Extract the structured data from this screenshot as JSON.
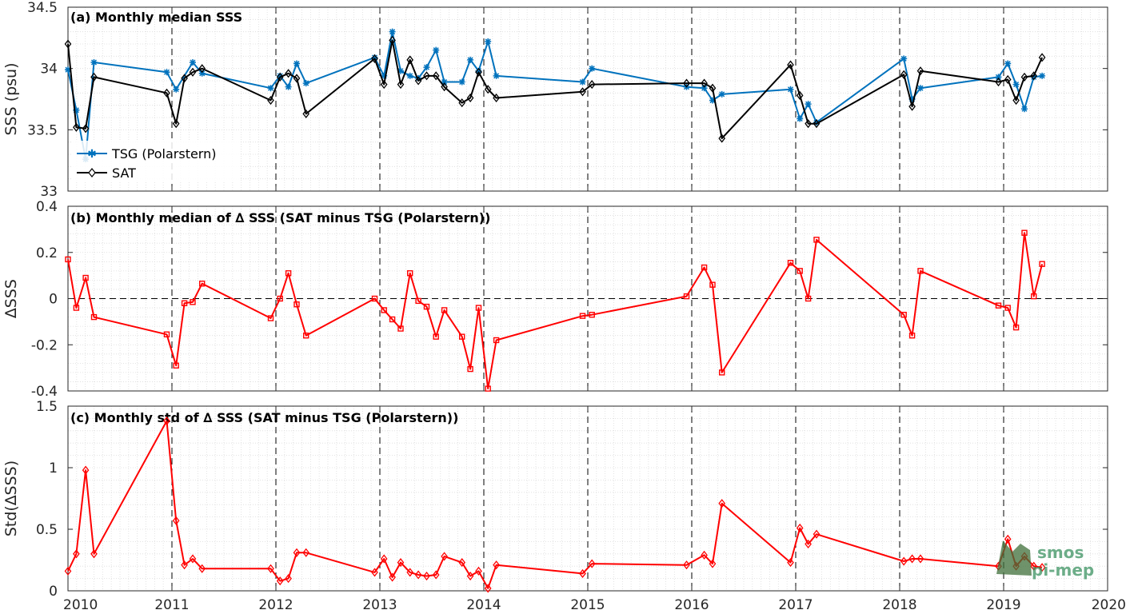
{
  "chart_data": [
    {
      "panel": "a",
      "type": "line",
      "title": "(a) Monthly median SSS",
      "ylabel": "SSS (psu)",
      "xlim": [
        2010,
        2020
      ],
      "ylim": [
        33,
        34.5
      ],
      "yticks": [
        33,
        33.5,
        34,
        34.5
      ],
      "yticklabels": [
        "33",
        "33.5",
        "34",
        "34.5"
      ],
      "grid": true,
      "legend_position": "bottom-left",
      "series": [
        {
          "name": "TSG (Polarstern)",
          "color": "#0072BD",
          "marker": "star",
          "x": [
            2010.0,
            2010.08,
            2010.17,
            2010.25,
            2010.95,
            2011.04,
            2011.2,
            2011.29,
            2011.95,
            2012.04,
            2012.12,
            2012.2,
            2012.29,
            2012.95,
            2013.04,
            2013.12,
            2013.2,
            2013.29,
            2013.37,
            2013.45,
            2013.54,
            2013.62,
            2013.79,
            2013.87,
            2013.95,
            2014.04,
            2014.12,
            2014.95,
            2015.04,
            2015.95,
            2016.12,
            2016.2,
            2016.29,
            2016.95,
            2017.04,
            2017.12,
            2017.2,
            2018.04,
            2018.12,
            2018.2,
            2018.95,
            2019.04,
            2019.12,
            2019.2,
            2019.29,
            2019.37
          ],
          "y": [
            33.99,
            33.66,
            33.26,
            34.05,
            33.97,
            33.83,
            34.05,
            33.96,
            33.84,
            33.94,
            33.85,
            34.04,
            33.88,
            34.09,
            33.94,
            34.3,
            33.98,
            33.94,
            33.92,
            34.01,
            34.15,
            33.89,
            33.89,
            34.07,
            33.98,
            34.22,
            33.94,
            33.89,
            34.0,
            33.85,
            33.84,
            33.74,
            33.79,
            33.83,
            33.59,
            33.71,
            33.56,
            34.08,
            33.75,
            33.84,
            33.93,
            34.04,
            33.87,
            33.67,
            33.93,
            33.94
          ]
        },
        {
          "name": "SAT",
          "color": "#000000",
          "marker": "diamond",
          "x": [
            2010.0,
            2010.08,
            2010.17,
            2010.25,
            2010.95,
            2011.04,
            2011.12,
            2011.2,
            2011.29,
            2011.95,
            2012.04,
            2012.12,
            2012.2,
            2012.29,
            2012.95,
            2013.04,
            2013.12,
            2013.2,
            2013.29,
            2013.37,
            2013.45,
            2013.54,
            2013.62,
            2013.79,
            2013.87,
            2013.95,
            2014.04,
            2014.12,
            2014.95,
            2015.04,
            2015.95,
            2016.12,
            2016.2,
            2016.29,
            2016.95,
            2017.04,
            2017.12,
            2017.2,
            2018.04,
            2018.12,
            2018.2,
            2018.95,
            2019.04,
            2019.12,
            2019.2,
            2019.29,
            2019.37
          ],
          "y": [
            34.2,
            33.52,
            33.51,
            33.93,
            33.8,
            33.55,
            33.92,
            33.97,
            34.0,
            33.74,
            33.93,
            33.96,
            33.92,
            33.63,
            34.08,
            33.87,
            34.23,
            33.87,
            34.07,
            33.9,
            33.94,
            33.94,
            33.85,
            33.72,
            33.76,
            33.97,
            33.83,
            33.76,
            33.81,
            33.87,
            33.88,
            33.88,
            33.84,
            33.43,
            34.03,
            33.78,
            33.55,
            33.55,
            33.95,
            33.69,
            33.98,
            33.89,
            33.91,
            33.74,
            33.93,
            33.94,
            34.09
          ]
        }
      ]
    },
    {
      "panel": "b",
      "type": "line",
      "title": "(b) Monthly median of ∆ SSS (SAT minus TSG (Polarstern))",
      "ylabel": "∆SSS",
      "xlim": [
        2010,
        2020
      ],
      "ylim": [
        -0.4,
        0.4
      ],
      "yticks": [
        -0.4,
        -0.2,
        0,
        0.2,
        0.4
      ],
      "yticklabels": [
        "-0.4",
        "-0.2",
        "0",
        "0.2",
        "0.4"
      ],
      "grid": true,
      "reference_line": 0,
      "series": [
        {
          "name": "",
          "color": "#FF0000",
          "marker": "square",
          "x": [
            2010.0,
            2010.08,
            2010.17,
            2010.25,
            2010.95,
            2011.04,
            2011.12,
            2011.2,
            2011.29,
            2011.95,
            2012.04,
            2012.12,
            2012.2,
            2012.29,
            2012.95,
            2013.04,
            2013.12,
            2013.2,
            2013.29,
            2013.37,
            2013.45,
            2013.54,
            2013.62,
            2013.79,
            2013.87,
            2013.95,
            2014.04,
            2014.12,
            2014.95,
            2015.04,
            2015.95,
            2016.12,
            2016.2,
            2016.29,
            2016.95,
            2017.04,
            2017.12,
            2017.2,
            2018.04,
            2018.12,
            2018.2,
            2018.95,
            2019.04,
            2019.12,
            2019.2,
            2019.29,
            2019.37
          ],
          "y": [
            0.17,
            -0.04,
            0.09,
            -0.08,
            -0.155,
            -0.29,
            -0.02,
            -0.015,
            0.065,
            -0.085,
            0.0,
            0.11,
            -0.025,
            -0.16,
            0.0,
            -0.05,
            -0.09,
            -0.13,
            0.11,
            -0.01,
            -0.035,
            -0.165,
            -0.05,
            -0.165,
            -0.305,
            -0.04,
            -0.39,
            -0.18,
            -0.075,
            -0.07,
            0.01,
            0.135,
            0.06,
            -0.32,
            0.155,
            0.12,
            0.0,
            0.255,
            -0.07,
            -0.16,
            0.12,
            -0.03,
            -0.04,
            -0.125,
            0.285,
            0.01,
            0.15
          ]
        }
      ]
    },
    {
      "panel": "c",
      "type": "line",
      "title": "(c) Monthly std of ∆ SSS (SAT minus TSG (Polarstern))",
      "ylabel": "Std(∆SSS)",
      "xlim": [
        2010,
        2020
      ],
      "ylim": [
        0,
        1.5
      ],
      "yticks": [
        0,
        0.5,
        1,
        1.5
      ],
      "yticklabels": [
        "0",
        "0.5",
        "1",
        "1.5"
      ],
      "grid": true,
      "series": [
        {
          "name": "",
          "color": "#FF0000",
          "marker": "diamond",
          "x": [
            2010.0,
            2010.08,
            2010.17,
            2010.25,
            2010.95,
            2011.04,
            2011.12,
            2011.2,
            2011.29,
            2011.95,
            2012.04,
            2012.12,
            2012.2,
            2012.29,
            2012.95,
            2013.04,
            2013.12,
            2013.2,
            2013.29,
            2013.37,
            2013.45,
            2013.54,
            2013.62,
            2013.79,
            2013.87,
            2013.95,
            2014.04,
            2014.12,
            2014.95,
            2015.04,
            2015.95,
            2016.12,
            2016.2,
            2016.29,
            2016.95,
            2017.04,
            2017.12,
            2017.2,
            2018.04,
            2018.12,
            2018.2,
            2018.95,
            2019.04,
            2019.12,
            2019.2,
            2019.29,
            2019.37
          ],
          "y": [
            0.16,
            0.3,
            0.98,
            0.3,
            1.38,
            0.57,
            0.21,
            0.26,
            0.18,
            0.18,
            0.08,
            0.1,
            0.31,
            0.31,
            0.15,
            0.26,
            0.11,
            0.23,
            0.15,
            0.13,
            0.12,
            0.13,
            0.28,
            0.23,
            0.12,
            0.16,
            0.02,
            0.21,
            0.14,
            0.22,
            0.21,
            0.29,
            0.22,
            0.71,
            0.23,
            0.51,
            0.38,
            0.46,
            0.24,
            0.26,
            0.26,
            0.2,
            0.42,
            0.2,
            0.28,
            0.2,
            0.19
          ]
        }
      ]
    }
  ],
  "xaxis": {
    "ticks": [
      2010,
      2011,
      2012,
      2013,
      2014,
      2015,
      2016,
      2017,
      2018,
      2019,
      2020
    ],
    "labels": [
      "2010",
      "2011",
      "2012",
      "2013",
      "2014",
      "2015",
      "2016",
      "2017",
      "2018",
      "2019",
      "2020"
    ]
  },
  "logo": {
    "line1": "smos",
    "line2": "pi-mep",
    "color": "#2e8b57",
    "bg_color": "#3f6f3a"
  },
  "colors": {
    "grid_minor": "#dcdcdc",
    "axis": "#262626",
    "year_line": "#000000"
  }
}
